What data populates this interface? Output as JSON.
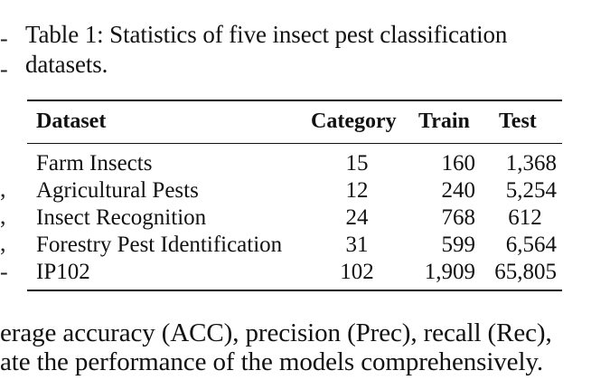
{
  "caption": {
    "line1": "Table 1: Statistics of five insect pest classification",
    "line2": "datasets."
  },
  "table": {
    "headers": {
      "dataset": "Dataset",
      "category": "Category",
      "train": "Train",
      "test": "Test"
    },
    "rows": [
      {
        "dataset": "Farm Insects",
        "category": "15",
        "train": "160",
        "test": "1,368"
      },
      {
        "dataset": "Agricultural Pests",
        "category": "12",
        "train": "240",
        "test": "5,254"
      },
      {
        "dataset": "Insect Recognition",
        "category": "24",
        "train": "768",
        "test": "612"
      },
      {
        "dataset": "Forestry Pest Identification",
        "category": "31",
        "train": "599",
        "test": "6,564"
      },
      {
        "dataset": "IP102",
        "category": "102",
        "train": "1,909",
        "test": "65,805"
      }
    ]
  },
  "body_text": {
    "line1": "erage accuracy (ACC), precision (Prec), recall (Rec),",
    "line2": "ate the performance of the models comprehensively."
  },
  "margin_marks": [
    "-",
    "-",
    ",",
    ",",
    ",",
    "-"
  ]
}
